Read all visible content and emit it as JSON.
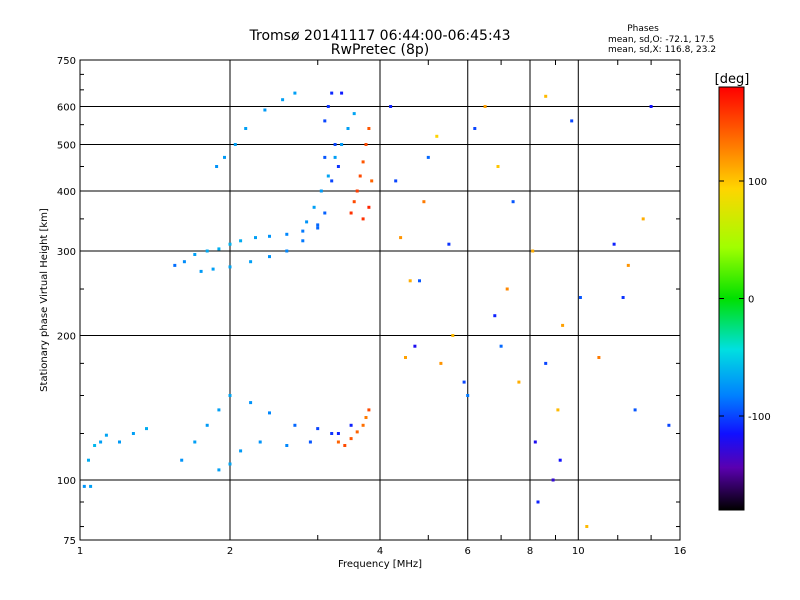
{
  "chart_data": {
    "type": "scatter",
    "title": "Tromsø 20141117 06:44:00-06:45:43",
    "subtitle": "RwPretec (8p)",
    "xlabel": "Frequency [MHz]",
    "ylabel": "Stationary phase Virtual Height [km]",
    "x_scale": "log",
    "y_scale": "log",
    "xlim": [
      1,
      16
    ],
    "ylim": [
      75,
      750
    ],
    "x_ticks": [
      1,
      2,
      4,
      6,
      8,
      10,
      16
    ],
    "x_tick_labels": [
      "1",
      "2",
      "4",
      "6",
      "8",
      "10",
      "16"
    ],
    "y_ticks": [
      75,
      100,
      200,
      300,
      400,
      500,
      600,
      750
    ],
    "y_tick_labels": [
      "75",
      "100",
      "200",
      "300",
      "400",
      "500",
      "600",
      "750"
    ],
    "grid": true,
    "phases": {
      "title": "Phases",
      "line_o": "mean, sd,O: -72.1, 17.5",
      "line_x": "mean, sd,X: 116.8, 23.2"
    },
    "colorbar": {
      "unit_label": "[deg]",
      "range": [
        -180,
        180
      ],
      "ticks": [
        100,
        0,
        -100
      ],
      "tick_labels": [
        "100",
        "0",
        "-100"
      ]
    },
    "series": [
      {
        "points": [
          [
            1.02,
            97,
            -75
          ],
          [
            1.05,
            97,
            -70
          ],
          [
            1.04,
            110,
            -65
          ],
          [
            1.07,
            118,
            -60
          ],
          [
            1.1,
            120,
            -70
          ],
          [
            1.13,
            124,
            -68
          ],
          [
            1.2,
            120,
            -72
          ],
          [
            1.28,
            125,
            -70
          ],
          [
            1.36,
            128,
            -65
          ],
          [
            1.55,
            280,
            -88
          ],
          [
            1.62,
            285,
            -78
          ],
          [
            1.7,
            295,
            -70
          ],
          [
            1.8,
            300,
            -66
          ],
          [
            1.9,
            303,
            -64
          ],
          [
            2.0,
            310,
            -62
          ],
          [
            2.1,
            315,
            -65
          ],
          [
            2.25,
            320,
            -70
          ],
          [
            2.4,
            322,
            -75
          ],
          [
            2.6,
            325,
            -80
          ],
          [
            2.8,
            330,
            -85
          ],
          [
            3.0,
            335,
            -90
          ],
          [
            1.75,
            272,
            -72
          ],
          [
            1.85,
            275,
            -70
          ],
          [
            2.0,
            278,
            -68
          ],
          [
            2.2,
            285,
            -70
          ],
          [
            2.4,
            292,
            -75
          ],
          [
            2.6,
            300,
            -80
          ],
          [
            2.8,
            315,
            -85
          ],
          [
            3.0,
            340,
            -90
          ],
          [
            3.1,
            360,
            -92
          ],
          [
            2.85,
            345,
            -75
          ],
          [
            2.95,
            370,
            -70
          ],
          [
            3.05,
            400,
            -72
          ],
          [
            3.15,
            430,
            -68
          ],
          [
            3.25,
            470,
            -70
          ],
          [
            3.35,
            500,
            -72
          ],
          [
            3.45,
            540,
            -70
          ],
          [
            3.55,
            580,
            -68
          ],
          [
            1.88,
            450,
            -75
          ],
          [
            1.95,
            470,
            -72
          ],
          [
            2.05,
            500,
            -70
          ],
          [
            2.15,
            540,
            -70
          ],
          [
            2.35,
            590,
            -72
          ],
          [
            2.55,
            620,
            -70
          ],
          [
            2.7,
            640,
            -70
          ],
          [
            3.1,
            560,
            -100
          ],
          [
            3.15,
            600,
            -105
          ],
          [
            3.2,
            640,
            -108
          ],
          [
            3.25,
            500,
            -100
          ],
          [
            3.3,
            450,
            -105
          ],
          [
            3.2,
            420,
            -100
          ],
          [
            3.35,
            640,
            -112
          ],
          [
            3.1,
            470,
            -95
          ],
          [
            1.6,
            110,
            -75
          ],
          [
            1.7,
            120,
            -70
          ],
          [
            1.8,
            130,
            -72
          ],
          [
            1.9,
            140,
            -70
          ],
          [
            2.0,
            150,
            -68
          ],
          [
            2.2,
            145,
            -75
          ],
          [
            2.4,
            138,
            -80
          ],
          [
            2.7,
            130,
            -90
          ],
          [
            3.0,
            128,
            -100
          ],
          [
            3.3,
            125,
            -110
          ],
          [
            1.9,
            105,
            -70
          ],
          [
            2.0,
            108,
            -68
          ],
          [
            2.1,
            115,
            -72
          ],
          [
            2.3,
            120,
            -75
          ],
          [
            2.6,
            118,
            -80
          ],
          [
            2.9,
            120,
            -95
          ],
          [
            3.2,
            125,
            -105
          ],
          [
            3.5,
            130,
            -110
          ]
        ]
      },
      {
        "points": [
          [
            3.5,
            360,
            160
          ],
          [
            3.55,
            380,
            150
          ],
          [
            3.6,
            400,
            155
          ],
          [
            3.65,
            430,
            150
          ],
          [
            3.7,
            460,
            145
          ],
          [
            3.75,
            500,
            150
          ],
          [
            3.8,
            540,
            145
          ],
          [
            3.7,
            350,
            160
          ],
          [
            3.8,
            370,
            165
          ],
          [
            3.85,
            420,
            140
          ],
          [
            3.4,
            118,
            150
          ],
          [
            3.5,
            122,
            145
          ],
          [
            3.6,
            126,
            140
          ],
          [
            3.7,
            130,
            135
          ],
          [
            3.75,
            135,
            130
          ],
          [
            3.8,
            140,
            150
          ],
          [
            3.3,
            120,
            140
          ],
          [
            4.4,
            320,
            120
          ],
          [
            4.6,
            260,
            110
          ],
          [
            4.9,
            380,
            130
          ],
          [
            5.2,
            520,
            95
          ],
          [
            5.6,
            200,
            105
          ],
          [
            6.5,
            600,
            115
          ],
          [
            6.9,
            450,
            100
          ],
          [
            7.2,
            250,
            125
          ],
          [
            8.1,
            300,
            110
          ],
          [
            8.6,
            630,
            105
          ],
          [
            9.3,
            210,
            115
          ],
          [
            10.4,
            80,
            105
          ],
          [
            11.0,
            180,
            130
          ],
          [
            12.6,
            280,
            120
          ],
          [
            13.5,
            350,
            110
          ],
          [
            4.5,
            180,
            115
          ],
          [
            5.3,
            175,
            120
          ],
          [
            7.6,
            160,
            110
          ],
          [
            9.1,
            140,
            105
          ]
        ]
      },
      {
        "points": [
          [
            4.2,
            600,
            -110
          ],
          [
            4.3,
            420,
            -100
          ],
          [
            4.8,
            260,
            -95
          ],
          [
            5.0,
            470,
            -90
          ],
          [
            5.5,
            310,
            -105
          ],
          [
            6.2,
            540,
            -100
          ],
          [
            6.8,
            220,
            -110
          ],
          [
            7.4,
            380,
            -95
          ],
          [
            8.2,
            120,
            -120
          ],
          [
            8.9,
            100,
            -130
          ],
          [
            9.7,
            560,
            -100
          ],
          [
            11.8,
            310,
            -110
          ],
          [
            14.0,
            600,
            -115
          ],
          [
            4.7,
            190,
            -120
          ],
          [
            5.9,
            160,
            -100
          ],
          [
            7.0,
            190,
            -90
          ],
          [
            8.3,
            90,
            -110
          ],
          [
            10.1,
            240,
            -95
          ],
          [
            12.3,
            240,
            -105
          ],
          [
            15.2,
            130,
            -100
          ],
          [
            6.0,
            150,
            -85
          ],
          [
            8.6,
            175,
            -100
          ],
          [
            9.2,
            110,
            -115
          ],
          [
            13.0,
            140,
            -95
          ]
        ]
      }
    ]
  }
}
